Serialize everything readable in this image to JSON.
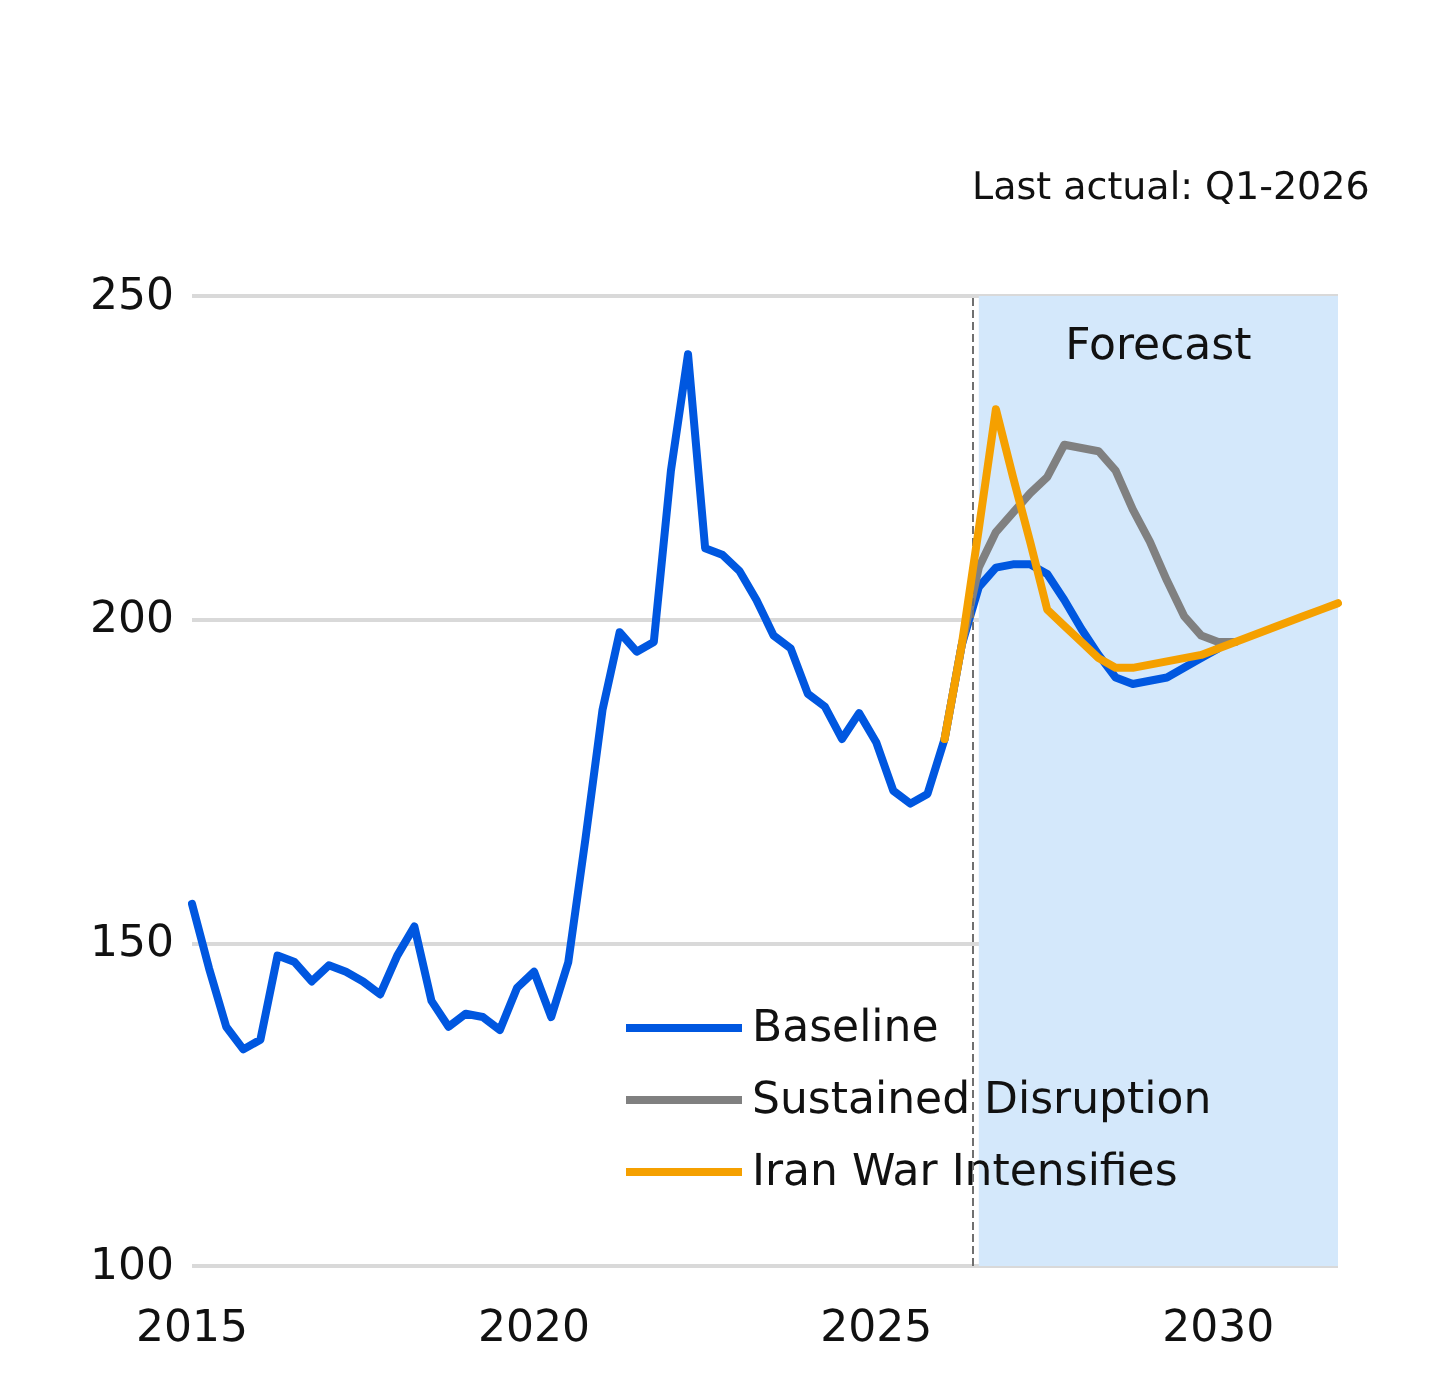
{
  "chart_data": {
    "type": "line",
    "x": [
      2015,
      2015.25,
      2015.5,
      2015.75,
      2016,
      2016.25,
      2016.5,
      2016.75,
      2017,
      2017.25,
      2017.5,
      2017.75,
      2018,
      2018.25,
      2018.5,
      2018.75,
      2019,
      2019.25,
      2019.5,
      2019.75,
      2020,
      2020.25,
      2020.5,
      2020.75,
      2021,
      2021.25,
      2021.5,
      2021.75,
      2022,
      2022.25,
      2022.5,
      2022.75,
      2023,
      2023.25,
      2023.5,
      2023.75,
      2024,
      2024.25,
      2024.5,
      2024.75,
      2025,
      2025.25,
      2025.5,
      2025.75,
      2026,
      2026.25,
      2026.5,
      2026.75,
      2027,
      2027.25,
      2027.5,
      2027.75,
      2028,
      2028.25,
      2028.5,
      2028.75,
      2029,
      2029.25,
      2029.5,
      2029.75,
      2030,
      2030.25,
      2030.5,
      2030.75,
      2031,
      2031.25,
      2031.5,
      2031.75
    ],
    "series": [
      {
        "name": "Baseline",
        "color": "#0057e0",
        "values": [
          156,
          146,
          137,
          133.5,
          135,
          148,
          147,
          144,
          146.5,
          145.5,
          144,
          142,
          148,
          152.5,
          141,
          137,
          139,
          138.5,
          136.5,
          143,
          145.5,
          138.5,
          147,
          166,
          186,
          198,
          195,
          196.5,
          223,
          241,
          211,
          210,
          207.5,
          203,
          197.5,
          195.5,
          188.5,
          186.5,
          181.5,
          185.5,
          181,
          173.5,
          171.5,
          173,
          181.5,
          196,
          205,
          208,
          208.5,
          208.5,
          207,
          203,
          198.5,
          194.5,
          191,
          190,
          190.5,
          191,
          192.5,
          194,
          195.5,
          null,
          null,
          null,
          null,
          null,
          null,
          null
        ]
      },
      {
        "name": "Sustained Disruption",
        "color": "#808080",
        "values": [
          null,
          null,
          null,
          null,
          null,
          null,
          null,
          null,
          null,
          null,
          null,
          null,
          null,
          null,
          null,
          null,
          null,
          null,
          null,
          null,
          null,
          null,
          null,
          null,
          null,
          null,
          null,
          null,
          null,
          null,
          null,
          null,
          null,
          null,
          null,
          null,
          null,
          null,
          null,
          null,
          null,
          null,
          null,
          null,
          181.5,
          196,
          208,
          213.5,
          216.5,
          219.5,
          222,
          227,
          226.5,
          226,
          223,
          217,
          212,
          206,
          200.5,
          197.5,
          196.5,
          196.5,
          null,
          null,
          null,
          null,
          null,
          null
        ]
      },
      {
        "name": "Iran War Intensifies",
        "color": "#f5a000",
        "values": [
          null,
          null,
          null,
          null,
          null,
          null,
          null,
          null,
          null,
          null,
          null,
          null,
          null,
          null,
          null,
          null,
          null,
          null,
          null,
          null,
          null,
          null,
          null,
          null,
          null,
          null,
          null,
          null,
          null,
          null,
          null,
          null,
          null,
          null,
          null,
          null,
          null,
          null,
          null,
          null,
          null,
          null,
          null,
          null,
          181.5,
          196,
          214,
          232.5,
          222,
          212,
          201.5,
          199,
          196.5,
          194,
          192.5,
          192.5,
          193,
          193.5,
          194,
          194.5,
          195.5,
          196.5,
          197.5,
          198.5,
          199.5,
          200.5,
          201.5,
          202.5
        ]
      }
    ],
    "xlim": [
      2015,
      2031.75
    ],
    "xticks": [
      2015,
      2020,
      2025,
      2030
    ],
    "ylim": [
      100,
      250
    ],
    "yticks": [
      100,
      150,
      200,
      250
    ],
    "grid": "y",
    "legend": "bottom",
    "marker": "none",
    "line_style": "solid",
    "ref_lines": [
      {
        "axis": "x",
        "value": 2026.4,
        "label": "Last actual: Q1-2026",
        "color": "#707070",
        "line_style": "dashed"
      }
    ],
    "bands": [
      {
        "axis": "x",
        "from": 2026.5,
        "to": 2031.75,
        "label": "Forecast",
        "color": "#d4e8fb"
      }
    ]
  }
}
